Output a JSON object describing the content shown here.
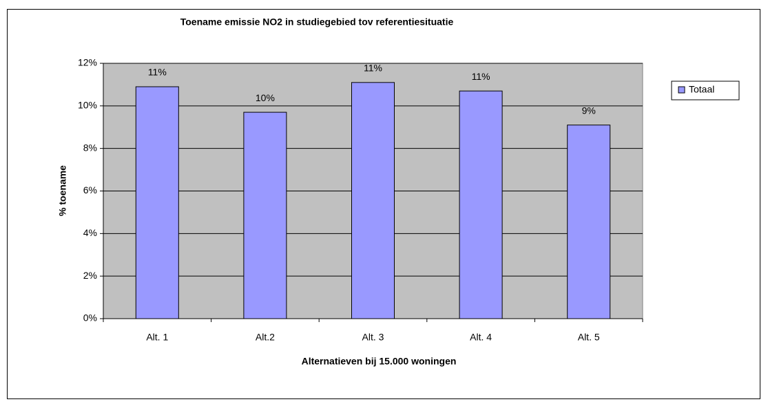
{
  "chart_data": {
    "type": "bar",
    "title": "Toename emissie NO2 in studiegebied tov referentiesituatie",
    "x_label": "Alternatieven bij 15.000 woningen",
    "y_label": "% toename",
    "categories": [
      "Alt. 1",
      "Alt.2",
      "Alt. 3",
      "Alt. 4",
      "Alt. 5"
    ],
    "series": [
      {
        "name": "Totaal",
        "color": "#9999ff",
        "values": [
          10.9,
          9.7,
          11.1,
          10.7,
          9.1
        ],
        "value_labels": [
          "11%",
          "10%",
          "11%",
          "11%",
          "9%"
        ]
      }
    ],
    "ylim": [
      0,
      12
    ],
    "yticks": [
      {
        "value": 0,
        "label": "0%"
      },
      {
        "value": 2,
        "label": "2%"
      },
      {
        "value": 4,
        "label": "4%"
      },
      {
        "value": 6,
        "label": "6%"
      },
      {
        "value": 8,
        "label": "8%"
      },
      {
        "value": 10,
        "label": "10%"
      },
      {
        "value": 12,
        "label": "12%"
      }
    ],
    "grid": true,
    "legend": "right",
    "plot_background": "#c0c0c0"
  }
}
